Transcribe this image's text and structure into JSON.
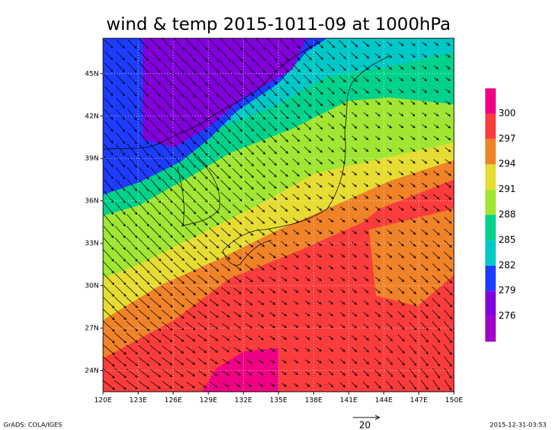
{
  "title": "wind & temp 2015-1011-09 at 1000hPa",
  "map": {
    "xlim": [
      120,
      150
    ],
    "ylim": [
      22.5,
      47.5
    ],
    "xticks": [
      {
        "value": 120,
        "label": "120E"
      },
      {
        "value": 123,
        "label": "123E"
      },
      {
        "value": 126,
        "label": "126E"
      },
      {
        "value": 129,
        "label": "129E"
      },
      {
        "value": 132,
        "label": "132E"
      },
      {
        "value": 135,
        "label": "135E"
      },
      {
        "value": 138,
        "label": "138E"
      },
      {
        "value": 141,
        "label": "141E"
      },
      {
        "value": 144,
        "label": "144E"
      },
      {
        "value": 147,
        "label": "147E"
      },
      {
        "value": 150,
        "label": "150E"
      }
    ],
    "yticks": [
      {
        "value": 24,
        "label": "24N"
      },
      {
        "value": 27,
        "label": "27N"
      },
      {
        "value": 30,
        "label": "30N"
      },
      {
        "value": 33,
        "label": "33N"
      },
      {
        "value": 36,
        "label": "36N"
      },
      {
        "value": 39,
        "label": "39N"
      },
      {
        "value": 42,
        "label": "42N"
      },
      {
        "value": 45,
        "label": "45N"
      }
    ]
  },
  "colorbar": {
    "levels": [
      276,
      279,
      282,
      285,
      288,
      291,
      294,
      297,
      300
    ],
    "colors": [
      "#a000c8",
      "#8200dc",
      "#1e3cff",
      "#00c8c8",
      "#00d28c",
      "#a0e632",
      "#e6dc32",
      "#f08228",
      "#fa3c3c",
      "#f00082"
    ]
  },
  "vector_scale": 20,
  "footer": {
    "left": "GrADS: COLA/IGES",
    "right": "2015-12-31-03:53"
  }
}
